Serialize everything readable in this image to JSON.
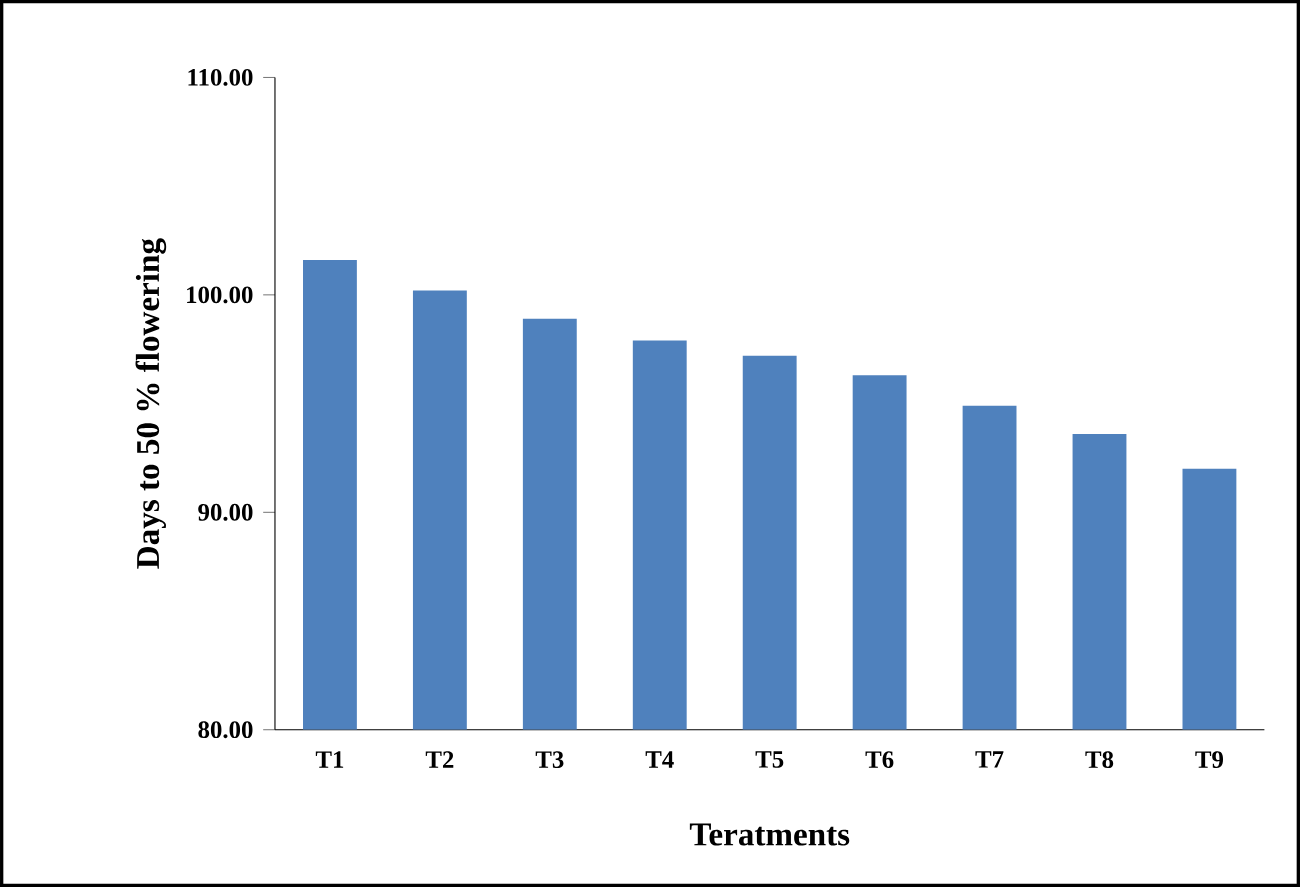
{
  "chart_data": {
    "type": "bar",
    "xlabel": "Teratments",
    "ylabel": "Days to 50 % flowering",
    "categories": [
      "T1",
      "T2",
      "T3",
      "T4",
      "T5",
      "T6",
      "T7",
      "T8",
      "T9"
    ],
    "values": [
      101.6,
      100.2,
      98.9,
      97.9,
      97.2,
      96.3,
      94.9,
      93.6,
      92.0
    ],
    "color": "#4f81bd",
    "ylim": [
      80,
      110
    ],
    "yticks": [
      {
        "value": 80,
        "label": "80.00"
      },
      {
        "value": 90,
        "label": "90.00"
      },
      {
        "value": 100,
        "label": "100.00"
      },
      {
        "value": 110,
        "label": "110.00"
      }
    ],
    "grid": false
  }
}
